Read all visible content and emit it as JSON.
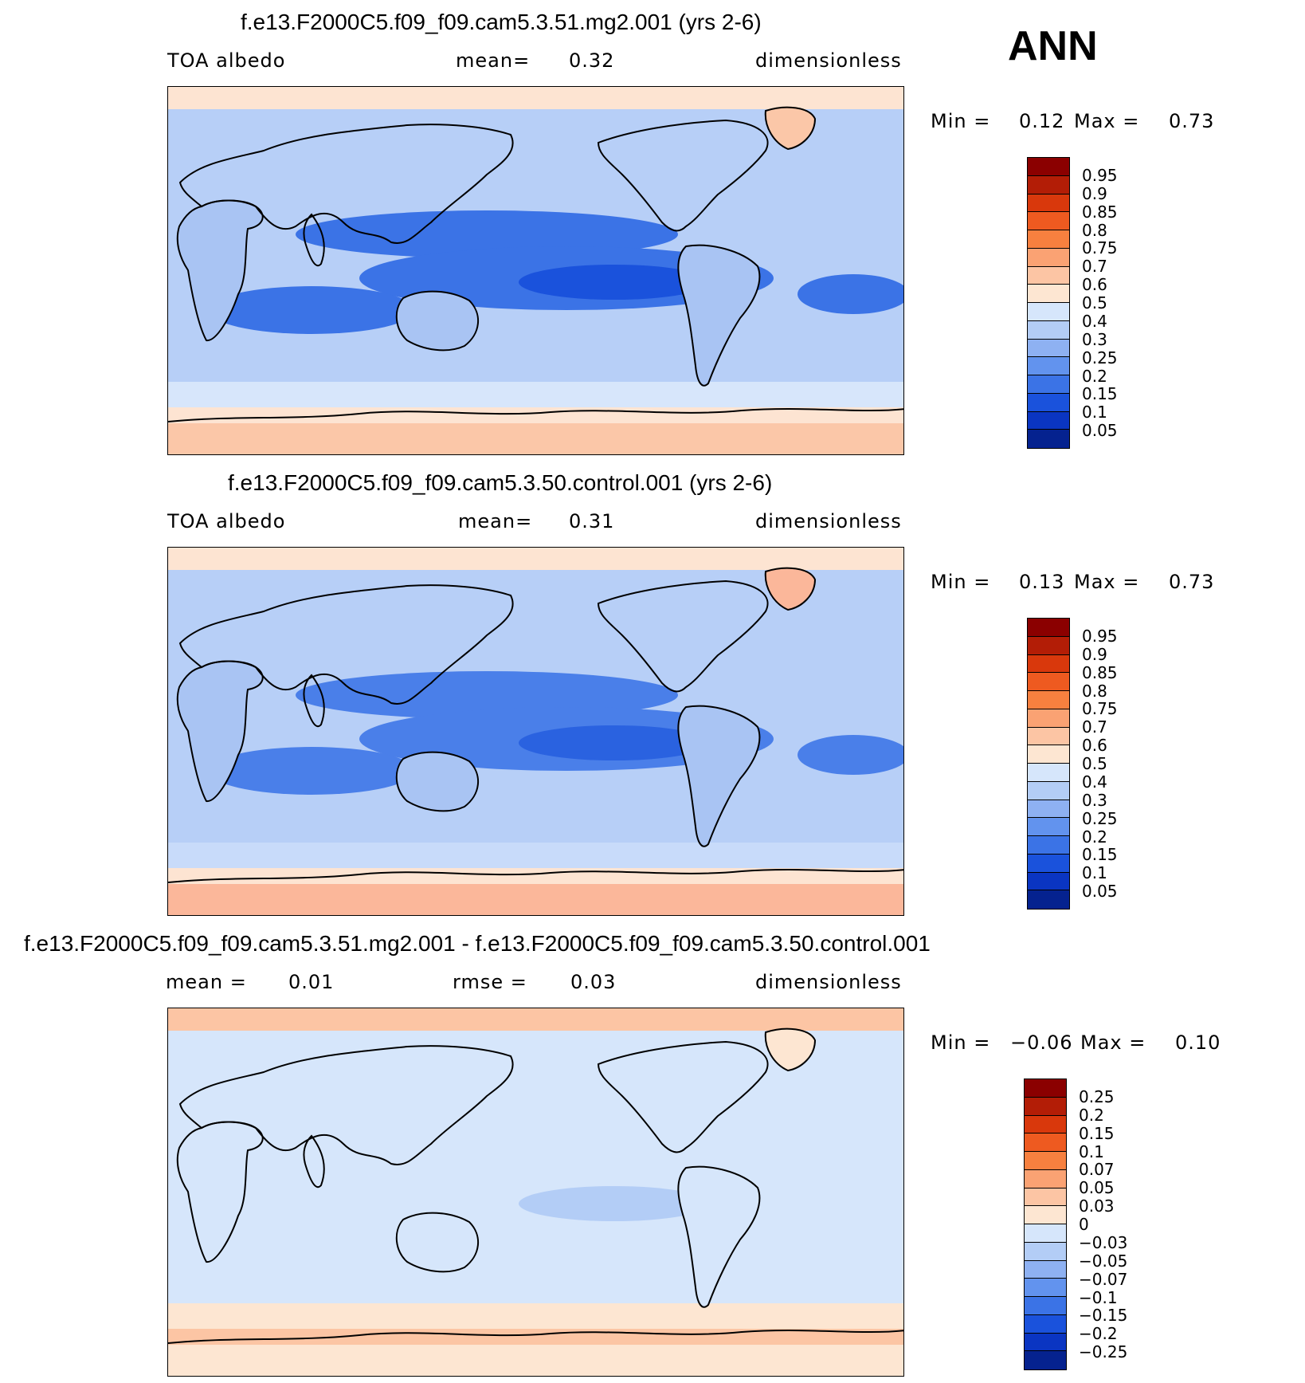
{
  "season": "ANN",
  "panels": [
    {
      "title": "f.e13.F2000C5.f09_f09.cam5.3.51.mg2.001 (yrs 2-6)",
      "left_label": "TOA albedo",
      "center_label": "mean=",
      "center_value": "0.32",
      "right_label": "dimensionless",
      "min_label": "Min =",
      "min_value": "0.12",
      "max_label": "Max =",
      "max_value": "0.73",
      "colorbar_labels": [
        "0.95",
        "0.9",
        "0.85",
        "0.8",
        "0.75",
        "0.7",
        "0.6",
        "0.5",
        "0.4",
        "0.3",
        "0.25",
        "0.2",
        "0.15",
        "0.1",
        "0.05"
      ],
      "colorbar_colors": [
        "#8b0000",
        "#b31d06",
        "#d9380c",
        "#ee5a20",
        "#f7803f",
        "#faa273",
        "#fcc5a4",
        "#fde6d2",
        "#d6e6fb",
        "#b3cdf6",
        "#8eb1f2",
        "#6293ee",
        "#3b73e6",
        "#1a52dc",
        "#0a35c2",
        "#05228f"
      ],
      "palette": {
        "bg": "#b7cff7",
        "polar": "#fbc7a8",
        "subpolar": "#fde4d2",
        "midlat": "#d7e6fb",
        "tropic": "#3b73e6",
        "deep": "#1a52dc",
        "land": "#a9c4f3"
      }
    },
    {
      "title": "f.e13.F2000C5.f09_f09.cam5.3.50.control.001 (yrs 2-6)",
      "left_label": "TOA albedo",
      "center_label": "mean=",
      "center_value": "0.31",
      "right_label": "dimensionless",
      "min_label": "Min =",
      "min_value": "0.13",
      "max_label": "Max =",
      "max_value": "0.73",
      "colorbar_labels": [
        "0.95",
        "0.9",
        "0.85",
        "0.8",
        "0.75",
        "0.7",
        "0.6",
        "0.5",
        "0.4",
        "0.3",
        "0.25",
        "0.2",
        "0.15",
        "0.1",
        "0.05"
      ],
      "colorbar_colors": [
        "#8b0000",
        "#b31d06",
        "#d9380c",
        "#ee5a20",
        "#f7803f",
        "#faa273",
        "#fcc5a4",
        "#fde6d2",
        "#d6e6fb",
        "#b3cdf6",
        "#8eb1f2",
        "#6293ee",
        "#3b73e6",
        "#1a52dc",
        "#0a35c2",
        "#05228f"
      ],
      "palette": {
        "bg": "#b7cff7",
        "polar": "#fbb79a",
        "subpolar": "#fde4d2",
        "midlat": "#c8dbfa",
        "tropic": "#4a7fe9",
        "deep": "#2a62e0",
        "land": "#a9c4f3"
      }
    },
    {
      "title": "f.e13.F2000C5.f09_f09.cam5.3.51.mg2.001 - f.e13.F2000C5.f09_f09.cam5.3.50.control.001",
      "left_label": "mean =",
      "left_value": "0.01",
      "center_label": "rmse =",
      "center_value": "0.03",
      "right_label": "dimensionless",
      "min_label": "Min =",
      "min_value": "−0.06",
      "max_label": "Max =",
      "max_value": "0.10",
      "colorbar_labels": [
        "0.25",
        "0.2",
        "0.15",
        "0.1",
        "0.07",
        "0.05",
        "0.03",
        "0",
        "−0.03",
        "−0.05",
        "−0.07",
        "−0.1",
        "−0.15",
        "−0.2",
        "−0.25"
      ],
      "colorbar_colors": [
        "#8b0000",
        "#b31d06",
        "#d9380c",
        "#ee5a20",
        "#f7803f",
        "#faa273",
        "#fcc5a4",
        "#fde6d2",
        "#d6e6fb",
        "#b3cdf6",
        "#8eb1f2",
        "#6293ee",
        "#3b73e6",
        "#1a52dc",
        "#0a35c2",
        "#05228f"
      ],
      "palette": {
        "bg": "#d6e6fb",
        "polar": "#fde6d2",
        "subpolar": "#fcc5a4",
        "midlat": "#fde6d2",
        "tropic": "#d6e6fb",
        "deep": "#b3cdf6",
        "land": "#d6e6fb"
      }
    }
  ]
}
